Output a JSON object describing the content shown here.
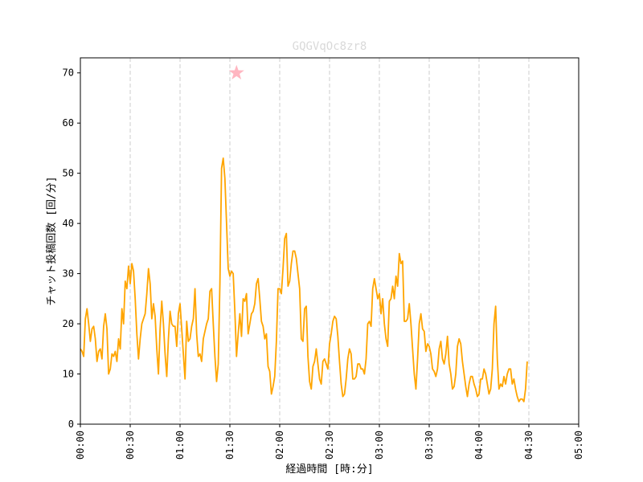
{
  "chart_data": {
    "type": "line",
    "title": "GQGVqOc8zr8",
    "title_color": "#d9d9d9",
    "xlabel": "経過時間 [時:分]",
    "ylabel": "チャット投稿回数 [回/分]",
    "x_unit": "minutes",
    "xlim": [
      0,
      300
    ],
    "ylim": [
      0,
      73
    ],
    "x_ticks": [
      {
        "value": 0,
        "label": "00:00"
      },
      {
        "value": 30,
        "label": "00:30"
      },
      {
        "value": 60,
        "label": "01:00"
      },
      {
        "value": 90,
        "label": "01:30"
      },
      {
        "value": 120,
        "label": "02:00"
      },
      {
        "value": 150,
        "label": "02:30"
      },
      {
        "value": 180,
        "label": "03:00"
      },
      {
        "value": 210,
        "label": "03:30"
      },
      {
        "value": 240,
        "label": "04:00"
      },
      {
        "value": 270,
        "label": "04:30"
      },
      {
        "value": 300,
        "label": "05:00"
      }
    ],
    "y_ticks": [
      {
        "value": 0,
        "label": "0"
      },
      {
        "value": 10,
        "label": "10"
      },
      {
        "value": 20,
        "label": "20"
      },
      {
        "value": 30,
        "label": "30"
      },
      {
        "value": 40,
        "label": "40"
      },
      {
        "value": 50,
        "label": "50"
      },
      {
        "value": 60,
        "label": "60"
      },
      {
        "value": 70,
        "label": "70"
      }
    ],
    "grid": {
      "x": true,
      "y": false,
      "style": "dashed"
    },
    "series": [
      {
        "color": "#ffa500",
        "points": [
          [
            0,
            15
          ],
          [
            1,
            14.5
          ],
          [
            2,
            13.5
          ],
          [
            3,
            21
          ],
          [
            4,
            23
          ],
          [
            5,
            20
          ],
          [
            6,
            16.5
          ],
          [
            7,
            19
          ],
          [
            8,
            19.5
          ],
          [
            9,
            17
          ],
          [
            10,
            12.5
          ],
          [
            11,
            14.5
          ],
          [
            12,
            15
          ],
          [
            13,
            13
          ],
          [
            14,
            19.5
          ],
          [
            15,
            22
          ],
          [
            16,
            19
          ],
          [
            17,
            10
          ],
          [
            18,
            11
          ],
          [
            19,
            14
          ],
          [
            20,
            13.5
          ],
          [
            21,
            14.5
          ],
          [
            22,
            12.5
          ],
          [
            23,
            17
          ],
          [
            24,
            15
          ],
          [
            25,
            23
          ],
          [
            26,
            20
          ],
          [
            27,
            28.5
          ],
          [
            28,
            27
          ],
          [
            29,
            31.5
          ],
          [
            30,
            28
          ],
          [
            31,
            32
          ],
          [
            32,
            30.5
          ],
          [
            33,
            25
          ],
          [
            34,
            18
          ],
          [
            35,
            13
          ],
          [
            36,
            17
          ],
          [
            37,
            20
          ],
          [
            38,
            21
          ],
          [
            39,
            22
          ],
          [
            40,
            26
          ],
          [
            41,
            31
          ],
          [
            42,
            28
          ],
          [
            43,
            21
          ],
          [
            44,
            24
          ],
          [
            45,
            21.5
          ],
          [
            46,
            15
          ],
          [
            47,
            10
          ],
          [
            48,
            19
          ],
          [
            49,
            24.5
          ],
          [
            50,
            20
          ],
          [
            51,
            14
          ],
          [
            52,
            9.5
          ],
          [
            53,
            17
          ],
          [
            54,
            22.5
          ],
          [
            55,
            20
          ],
          [
            56,
            19.5
          ],
          [
            57,
            19.5
          ],
          [
            58,
            15.5
          ],
          [
            59,
            22
          ],
          [
            60,
            24
          ],
          [
            61,
            19
          ],
          [
            62,
            14
          ],
          [
            63,
            9
          ],
          [
            64,
            20.5
          ],
          [
            65,
            16.5
          ],
          [
            66,
            17
          ],
          [
            67,
            19.5
          ],
          [
            68,
            21
          ],
          [
            69,
            27
          ],
          [
            70,
            18
          ],
          [
            71,
            13.5
          ],
          [
            72,
            14
          ],
          [
            73,
            12.5
          ],
          [
            74,
            17
          ],
          [
            75,
            18.5
          ],
          [
            76,
            20
          ],
          [
            77,
            21
          ],
          [
            78,
            26.5
          ],
          [
            79,
            27
          ],
          [
            80,
            20
          ],
          [
            81,
            13.5
          ],
          [
            82,
            8.5
          ],
          [
            83,
            12
          ],
          [
            84,
            28
          ],
          [
            85,
            51
          ],
          [
            86,
            53
          ],
          [
            87,
            49
          ],
          [
            88,
            40
          ],
          [
            89,
            31
          ],
          [
            90,
            29.5
          ],
          [
            91,
            30.5
          ],
          [
            92,
            30
          ],
          [
            93,
            22.5
          ],
          [
            94,
            13.5
          ],
          [
            95,
            18
          ],
          [
            96,
            22
          ],
          [
            97,
            17.5
          ],
          [
            98,
            25
          ],
          [
            99,
            24.5
          ],
          [
            100,
            26
          ],
          [
            101,
            18
          ],
          [
            102,
            20
          ],
          [
            103,
            22
          ],
          [
            104,
            22.5
          ],
          [
            105,
            24
          ],
          [
            106,
            28
          ],
          [
            107,
            29
          ],
          [
            108,
            25
          ],
          [
            109,
            20.5
          ],
          [
            110,
            19.5
          ],
          [
            111,
            17
          ],
          [
            112,
            18
          ],
          [
            113,
            11.5
          ],
          [
            114,
            10.5
          ],
          [
            115,
            6
          ],
          [
            116,
            7.5
          ],
          [
            117,
            9.5
          ],
          [
            118,
            16.5
          ],
          [
            119,
            27
          ],
          [
            120,
            27
          ],
          [
            121,
            26
          ],
          [
            122,
            31
          ],
          [
            123,
            37
          ],
          [
            124,
            38
          ],
          [
            125,
            27.5
          ],
          [
            126,
            28.5
          ],
          [
            127,
            32
          ],
          [
            128,
            34.5
          ],
          [
            129,
            34.5
          ],
          [
            130,
            33
          ],
          [
            131,
            30
          ],
          [
            132,
            27
          ],
          [
            133,
            17
          ],
          [
            134,
            16.5
          ],
          [
            135,
            23
          ],
          [
            136,
            23.5
          ],
          [
            137,
            13.5
          ],
          [
            138,
            8.5
          ],
          [
            139,
            7
          ],
          [
            140,
            11.5
          ],
          [
            141,
            12.5
          ],
          [
            142,
            15
          ],
          [
            143,
            12
          ],
          [
            144,
            9
          ],
          [
            145,
            8
          ],
          [
            146,
            12.5
          ],
          [
            147,
            13
          ],
          [
            148,
            12
          ],
          [
            149,
            11
          ],
          [
            150,
            16
          ],
          [
            151,
            18
          ],
          [
            152,
            20.5
          ],
          [
            153,
            21.5
          ],
          [
            154,
            21
          ],
          [
            155,
            17.5
          ],
          [
            156,
            12.5
          ],
          [
            157,
            8
          ],
          [
            158,
            5.5
          ],
          [
            159,
            6
          ],
          [
            160,
            9
          ],
          [
            161,
            13
          ],
          [
            162,
            15
          ],
          [
            163,
            14
          ],
          [
            164,
            9
          ],
          [
            165,
            9
          ],
          [
            166,
            9.5
          ],
          [
            167,
            12
          ],
          [
            168,
            12
          ],
          [
            169,
            11
          ],
          [
            170,
            11
          ],
          [
            171,
            10
          ],
          [
            172,
            13
          ],
          [
            173,
            20
          ],
          [
            174,
            20.5
          ],
          [
            175,
            19.5
          ],
          [
            176,
            27
          ],
          [
            177,
            29
          ],
          [
            178,
            27
          ],
          [
            179,
            25
          ],
          [
            180,
            26
          ],
          [
            181,
            22
          ],
          [
            182,
            25
          ],
          [
            183,
            20
          ],
          [
            184,
            17
          ],
          [
            185,
            15.5
          ],
          [
            186,
            24.5
          ],
          [
            187,
            25
          ],
          [
            188,
            27.5
          ],
          [
            189,
            25
          ],
          [
            190,
            29.5
          ],
          [
            191,
            27.5
          ],
          [
            192,
            34
          ],
          [
            193,
            32
          ],
          [
            194,
            32.5
          ],
          [
            195,
            20.5
          ],
          [
            196,
            20.5
          ],
          [
            197,
            21
          ],
          [
            198,
            24
          ],
          [
            199,
            20
          ],
          [
            200,
            15
          ],
          [
            201,
            10
          ],
          [
            202,
            7
          ],
          [
            203,
            13
          ],
          [
            204,
            20
          ],
          [
            205,
            22
          ],
          [
            206,
            19
          ],
          [
            207,
            18.5
          ],
          [
            208,
            14.5
          ],
          [
            209,
            16
          ],
          [
            210,
            15.5
          ],
          [
            211,
            14
          ],
          [
            212,
            11
          ],
          [
            213,
            10.5
          ],
          [
            214,
            9.5
          ],
          [
            215,
            11
          ],
          [
            216,
            15
          ],
          [
            217,
            16.5
          ],
          [
            218,
            13
          ],
          [
            219,
            12
          ],
          [
            220,
            14
          ],
          [
            221,
            17.5
          ],
          [
            222,
            12
          ],
          [
            223,
            10
          ],
          [
            224,
            7
          ],
          [
            225,
            7.5
          ],
          [
            226,
            10
          ],
          [
            227,
            15.5
          ],
          [
            228,
            17
          ],
          [
            229,
            16
          ],
          [
            230,
            12.5
          ],
          [
            231,
            10
          ],
          [
            232,
            7.5
          ],
          [
            233,
            5.5
          ],
          [
            234,
            8
          ],
          [
            235,
            9.5
          ],
          [
            236,
            9.5
          ],
          [
            237,
            8
          ],
          [
            238,
            7
          ],
          [
            239,
            5.5
          ],
          [
            240,
            6
          ],
          [
            241,
            9
          ],
          [
            242,
            9
          ],
          [
            243,
            11
          ],
          [
            244,
            10
          ],
          [
            245,
            8
          ],
          [
            246,
            6
          ],
          [
            247,
            7
          ],
          [
            248,
            11
          ],
          [
            249,
            20
          ],
          [
            250,
            23.5
          ],
          [
            251,
            13
          ],
          [
            252,
            7
          ],
          [
            253,
            8
          ],
          [
            254,
            7.5
          ],
          [
            255,
            9.5
          ],
          [
            256,
            8
          ],
          [
            257,
            10
          ],
          [
            258,
            11
          ],
          [
            259,
            11
          ],
          [
            260,
            8
          ],
          [
            261,
            9
          ],
          [
            262,
            7
          ],
          [
            263,
            5.5
          ],
          [
            264,
            4.5
          ],
          [
            265,
            5
          ],
          [
            266,
            5
          ],
          [
            267,
            4.5
          ],
          [
            268,
            7
          ],
          [
            269,
            12.5
          ]
        ]
      }
    ],
    "marker": {
      "shape": "star",
      "x": 94,
      "y": 70,
      "color": "#ffb6c1"
    }
  }
}
